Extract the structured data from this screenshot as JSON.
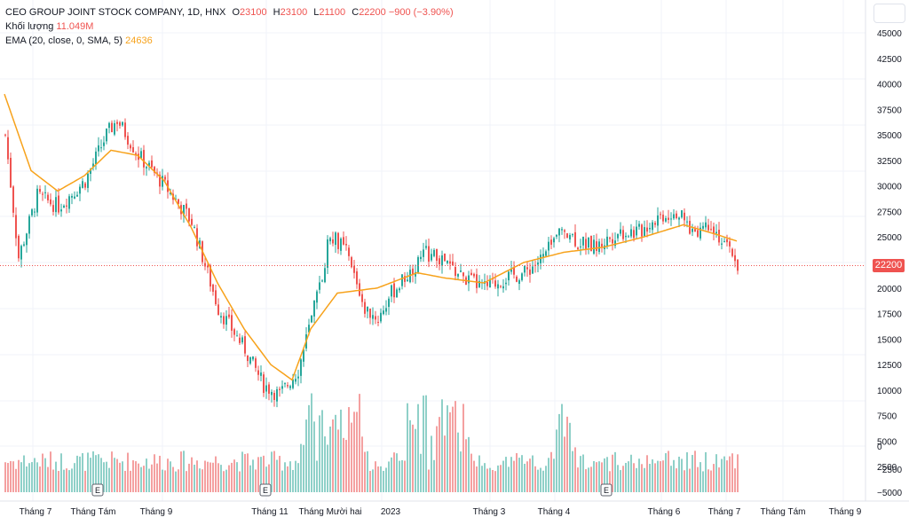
{
  "legend": {
    "symbol": "CEO GROUP JOINT STOCK COMPANY, 1D, HNX",
    "open_label": "O",
    "open": "23100",
    "high_label": "H",
    "high": "23100",
    "low_label": "L",
    "low": "21100",
    "close_label": "C",
    "close": "22200",
    "change": "−900 (−3.90%)",
    "volume_label": "Khối lượng",
    "volume": "11.049M",
    "ema_label": "EMA (20, close, 0, SMA, 5)",
    "ema_value": "24636"
  },
  "colors": {
    "up": "#26a69a",
    "down": "#ef5350",
    "ema": "#f7a21b",
    "up_vol": "#8fd0c8",
    "down_vol": "#f4a0a0"
  },
  "current_price_label": "22200",
  "event_marker": "E",
  "chart_data": {
    "type": "candlestick",
    "price_axis": {
      "ylim": [
        0,
        46000
      ],
      "ticks": [
        20000,
        22500,
        25000,
        27500,
        30000,
        32500,
        35000,
        37500,
        40000,
        42500,
        45000,
        2500,
        5000,
        7500,
        10000,
        12500,
        15000,
        17500
      ],
      "tick_labels": [
        "20000",
        "22500",
        "25000",
        "27500",
        "30000",
        "32500",
        "35000",
        "37500",
        "40000",
        "42500",
        "45000",
        "2500",
        "5000",
        "7500",
        "10000",
        "12500",
        "15000",
        "17500"
      ]
    },
    "volume_axis": {
      "ticks": [
        -5000,
        -2500,
        0
      ],
      "tick_labels": [
        "−5000",
        "−2500",
        "0"
      ]
    },
    "x_labels": [
      "Tháng 7",
      "Tháng Tám",
      "Tháng 9",
      "Tháng 11",
      "Tháng Mười hai",
      "2023",
      "Tháng 3",
      "Tháng 4",
      "Tháng 6",
      "Tháng 7",
      "Tháng Tám",
      "Tháng 9"
    ],
    "ema_anchor_points": [
      [
        0,
        39000
      ],
      [
        10,
        31500
      ],
      [
        20,
        29500
      ],
      [
        30,
        31000
      ],
      [
        40,
        33500
      ],
      [
        50,
        33000
      ],
      [
        60,
        30500
      ],
      [
        70,
        26000
      ],
      [
        80,
        20500
      ],
      [
        90,
        16000
      ],
      [
        100,
        12500
      ],
      [
        108,
        11000
      ],
      [
        115,
        16000
      ],
      [
        125,
        19500
      ],
      [
        140,
        20000
      ],
      [
        155,
        21500
      ],
      [
        165,
        21000
      ],
      [
        180,
        20500
      ],
      [
        195,
        22500
      ],
      [
        210,
        23500
      ],
      [
        225,
        24000
      ],
      [
        240,
        25000
      ],
      [
        255,
        26200
      ],
      [
        268,
        25200
      ],
      [
        275,
        24600
      ]
    ],
    "close_anchor_points": [
      [
        0,
        35000
      ],
      [
        5,
        23000
      ],
      [
        12,
        29000
      ],
      [
        20,
        28000
      ],
      [
        30,
        30500
      ],
      [
        38,
        35000
      ],
      [
        42,
        36500
      ],
      [
        50,
        33000
      ],
      [
        60,
        30000
      ],
      [
        70,
        26500
      ],
      [
        80,
        18000
      ],
      [
        90,
        14000
      ],
      [
        97,
        10500
      ],
      [
        103,
        9500
      ],
      [
        110,
        12000
      ],
      [
        118,
        20000
      ],
      [
        122,
        25500
      ],
      [
        128,
        23500
      ],
      [
        135,
        18000
      ],
      [
        140,
        17000
      ],
      [
        145,
        19500
      ],
      [
        150,
        21000
      ],
      [
        158,
        23500
      ],
      [
        165,
        22500
      ],
      [
        172,
        21000
      ],
      [
        180,
        20000
      ],
      [
        188,
        21000
      ],
      [
        195,
        21500
      ],
      [
        202,
        23000
      ],
      [
        210,
        26000
      ],
      [
        215,
        24500
      ],
      [
        222,
        24000
      ],
      [
        230,
        25500
      ],
      [
        238,
        25500
      ],
      [
        245,
        27000
      ],
      [
        252,
        27500
      ],
      [
        258,
        25500
      ],
      [
        265,
        26500
      ],
      [
        270,
        24000
      ],
      [
        273,
        23500
      ],
      [
        275,
        22200
      ]
    ],
    "event_bars": [
      35,
      98,
      226
    ],
    "current_price": 22200
  }
}
